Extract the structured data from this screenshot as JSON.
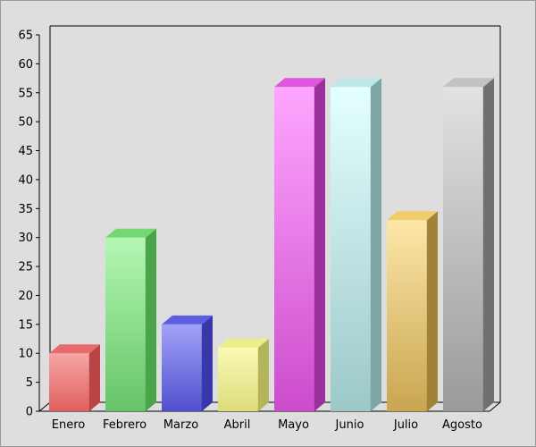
{
  "chart_data": {
    "type": "bar",
    "style": "3d-column",
    "categories": [
      "Enero",
      "Febrero",
      "Marzo",
      "Abril",
      "Mayo",
      "Junio",
      "Julio",
      "Agosto"
    ],
    "values": [
      10,
      30,
      15,
      11,
      56,
      56,
      33,
      56
    ],
    "title": "",
    "xlabel": "",
    "ylabel": "",
    "ylim": [
      0,
      65
    ],
    "yticks": [
      0,
      5,
      10,
      15,
      20,
      25,
      30,
      35,
      40,
      45,
      50,
      55,
      60,
      65
    ],
    "grid": false,
    "legend": "none",
    "colors": [
      {
        "light": "#f7a5a5",
        "main": "#e06060",
        "dark": "#b84444",
        "top": "#e96a6a"
      },
      {
        "light": "#b4f7b4",
        "main": "#66c466",
        "dark": "#4aa54a",
        "top": "#73d873"
      },
      {
        "light": "#a2a2f8",
        "main": "#5050d0",
        "dark": "#3838a8",
        "top": "#5e5ee0"
      },
      {
        "light": "#f9f9b4",
        "main": "#dcdc7c",
        "dark": "#b4b45a",
        "top": "#eeee88"
      },
      {
        "light": "#ffa6ff",
        "main": "#cc4ccc",
        "dark": "#9a309a",
        "top": "#e055e0"
      },
      {
        "light": "#e4ffff",
        "main": "#9cc8c8",
        "dark": "#7ea6a6",
        "top": "#bce8e8"
      },
      {
        "light": "#fde6a8",
        "main": "#c9a650",
        "dark": "#a08238",
        "top": "#f0cc6a"
      },
      {
        "light": "#e2e2e2",
        "main": "#9a9a9a",
        "dark": "#707070",
        "top": "#c2c2c2"
      }
    ]
  }
}
